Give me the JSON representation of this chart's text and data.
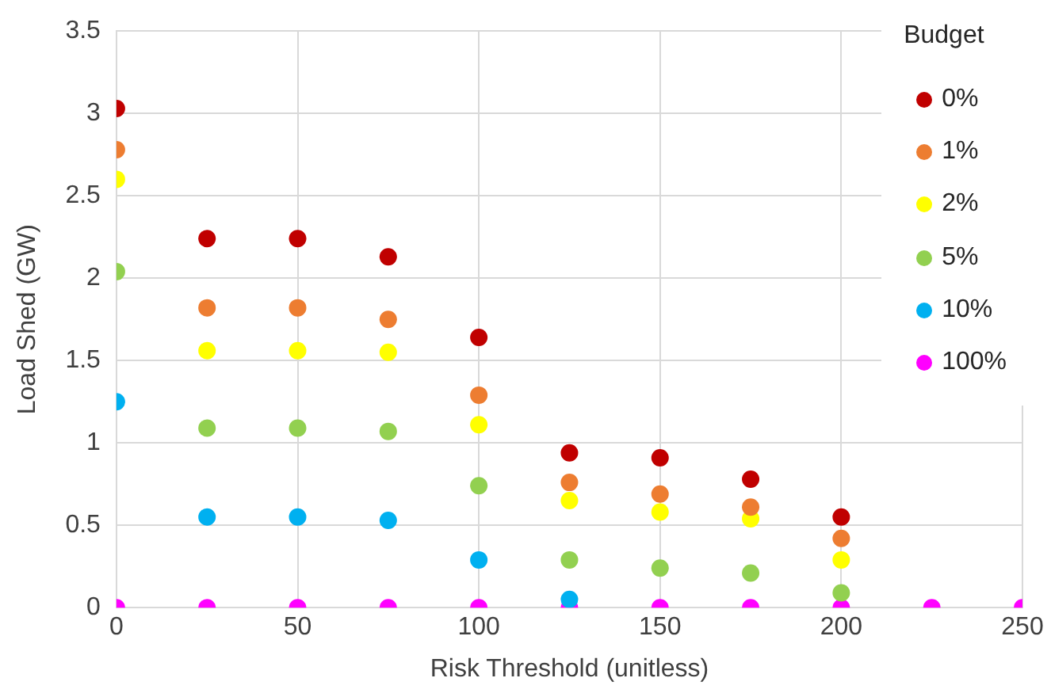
{
  "chart_data": {
    "type": "scatter",
    "xlabel": "Risk Threshold (unitless)",
    "ylabel": "Load Shed (GW)",
    "legend_title": "Budget",
    "x": [
      0,
      25,
      50,
      75,
      100,
      125,
      150,
      175,
      200,
      225,
      250
    ],
    "series": [
      {
        "name": "0%",
        "color": "#c00000",
        "values": [
          3.03,
          2.24,
          2.24,
          2.13,
          1.64,
          0.94,
          0.91,
          0.78,
          0.55,
          null,
          null
        ]
      },
      {
        "name": "1%",
        "color": "#ed7d31",
        "values": [
          2.78,
          1.82,
          1.82,
          1.75,
          1.29,
          0.76,
          0.69,
          0.61,
          0.42,
          null,
          null
        ]
      },
      {
        "name": "2%",
        "color": "#ffff00",
        "values": [
          2.6,
          1.56,
          1.56,
          1.55,
          1.11,
          0.65,
          0.58,
          0.54,
          0.29,
          null,
          null
        ]
      },
      {
        "name": "5%",
        "color": "#92d050",
        "values": [
          2.04,
          1.09,
          1.09,
          1.07,
          0.74,
          0.29,
          0.24,
          0.21,
          0.09,
          null,
          null
        ]
      },
      {
        "name": "10%",
        "color": "#00b0f0",
        "values": [
          1.25,
          0.55,
          0.55,
          0.53,
          0.29,
          0.05,
          null,
          null,
          null,
          null,
          null
        ]
      },
      {
        "name": "100%",
        "color": "#ff00ff",
        "values": [
          0,
          0,
          0,
          0,
          0,
          0,
          0,
          0,
          0,
          0,
          0
        ]
      }
    ],
    "xlim": [
      0,
      250
    ],
    "xticks": [
      0,
      50,
      100,
      150,
      200,
      250
    ],
    "ylim": [
      0,
      3.5
    ],
    "yticks": [
      0,
      0.5,
      1,
      1.5,
      2,
      2.5,
      3,
      3.5
    ],
    "grid": true,
    "legend": "top right",
    "marker": "circle"
  }
}
